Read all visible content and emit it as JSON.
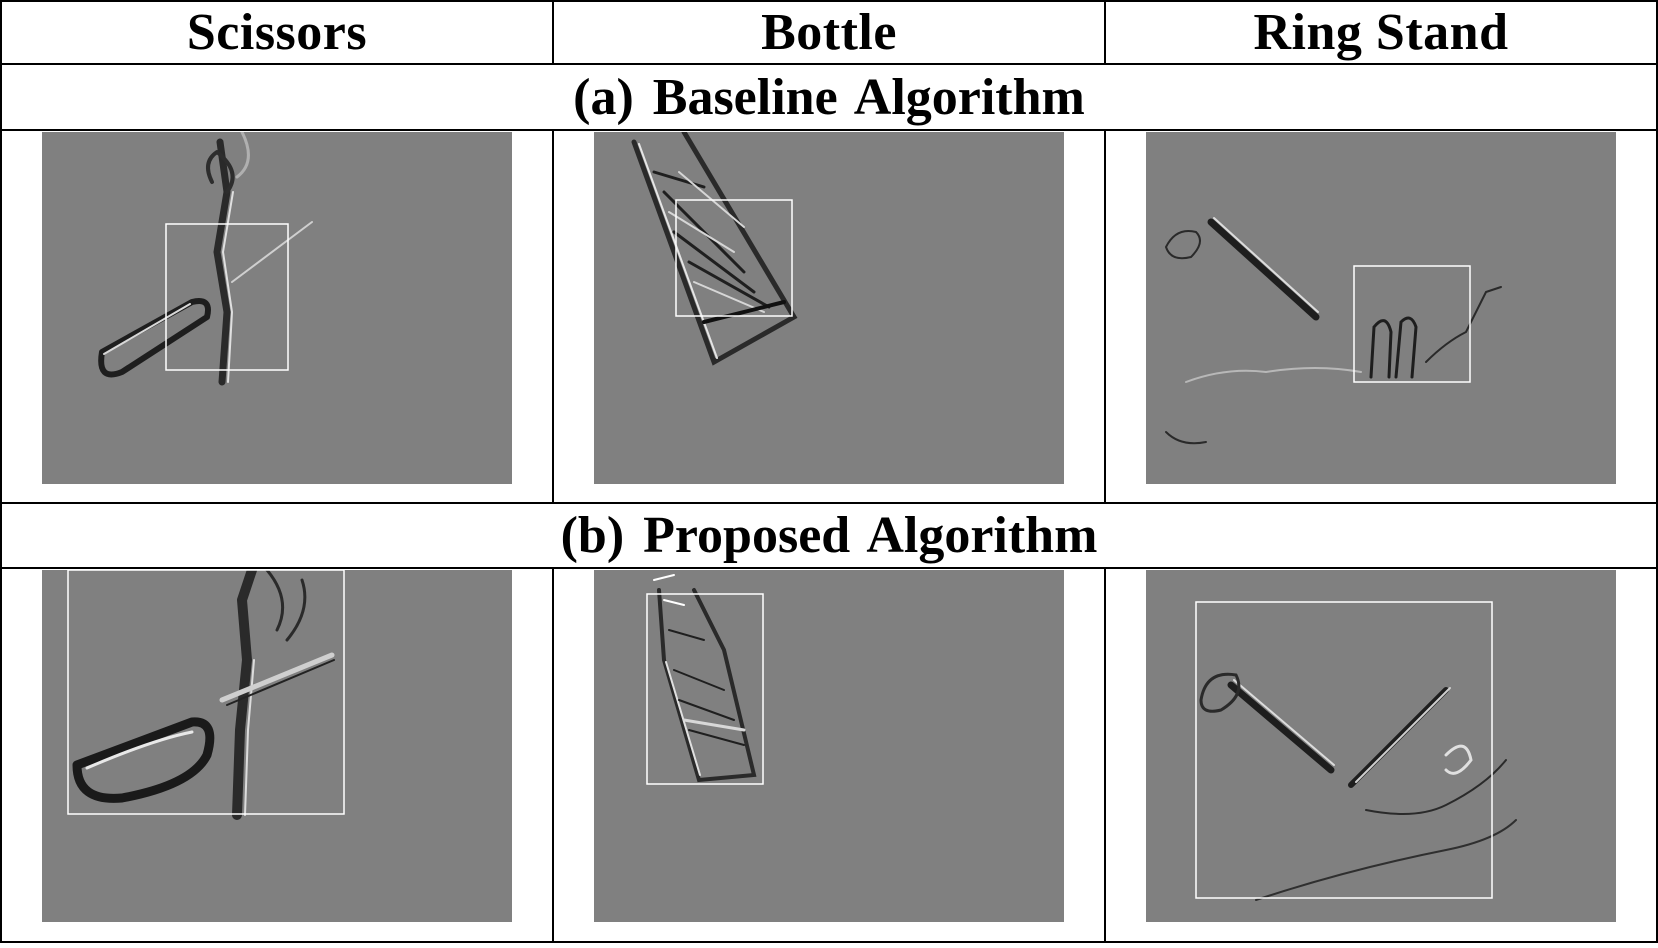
{
  "columns": [
    {
      "key": "scissors",
      "label": "Scissors"
    },
    {
      "key": "bottle",
      "label": "Bottle"
    },
    {
      "key": "ring_stand",
      "label": "Ring Stand"
    }
  ],
  "rows": [
    {
      "key": "baseline",
      "caption": "(a) Baseline Algorithm"
    },
    {
      "key": "proposed",
      "caption": "(b) Proposed Algorithm"
    }
  ],
  "colors": {
    "panel_background": "#808080",
    "bounding_box": "#ffffff",
    "rules": "#000000"
  }
}
